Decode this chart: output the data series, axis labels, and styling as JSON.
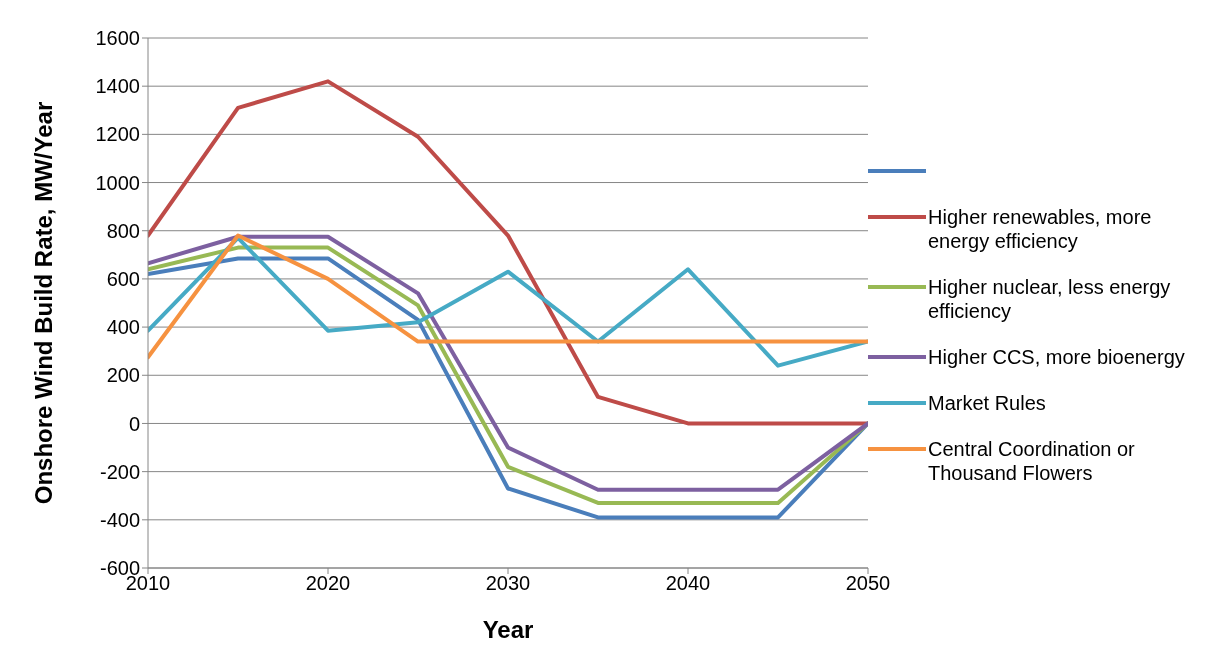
{
  "chart_data": {
    "type": "line",
    "xlabel": "Year",
    "ylabel": "Onshore Wind Build Rate, MW/Year",
    "x": [
      2010,
      2015,
      2020,
      2025,
      2030,
      2035,
      2040,
      2045,
      2050
    ],
    "series": [
      {
        "color": "#4a7ebb",
        "values": [
          620,
          685,
          685,
          430,
          -270,
          -390,
          -390,
          -390,
          0
        ]
      },
      {
        "name": "Higher renewables, more energy efficiency",
        "color": "#be4b48",
        "values": [
          780,
          1310,
          1420,
          1190,
          780,
          110,
          0,
          0,
          0
        ]
      },
      {
        "name": "Higher nuclear, less energy efficiency",
        "color": "#98b954",
        "values": [
          640,
          730,
          730,
          490,
          -180,
          -330,
          -330,
          -330,
          0
        ]
      },
      {
        "name": "Higher CCS, more bioenergy",
        "color": "#7d60a0",
        "values": [
          665,
          775,
          775,
          540,
          -100,
          -275,
          -275,
          -275,
          0
        ]
      },
      {
        "name": "Market Rules",
        "color": "#46aac5",
        "values": [
          385,
          770,
          385,
          420,
          630,
          340,
          640,
          240,
          340
        ]
      },
      {
        "name": "Central Coordination or Thousand Flowers",
        "color": "#f69240",
        "values": [
          275,
          780,
          600,
          340,
          340,
          340,
          340,
          340,
          340
        ]
      }
    ],
    "xlim": [
      2010,
      2050
    ],
    "xticks": [
      2010,
      2020,
      2030,
      2040,
      2050
    ],
    "ylim": [
      -600,
      1600
    ],
    "yticks": [
      -600,
      -400,
      -200,
      0,
      200,
      400,
      600,
      800,
      1000,
      1200,
      1400,
      1600
    ],
    "grid": "y",
    "legend": "right",
    "marker": "none",
    "line_style": "solid"
  }
}
